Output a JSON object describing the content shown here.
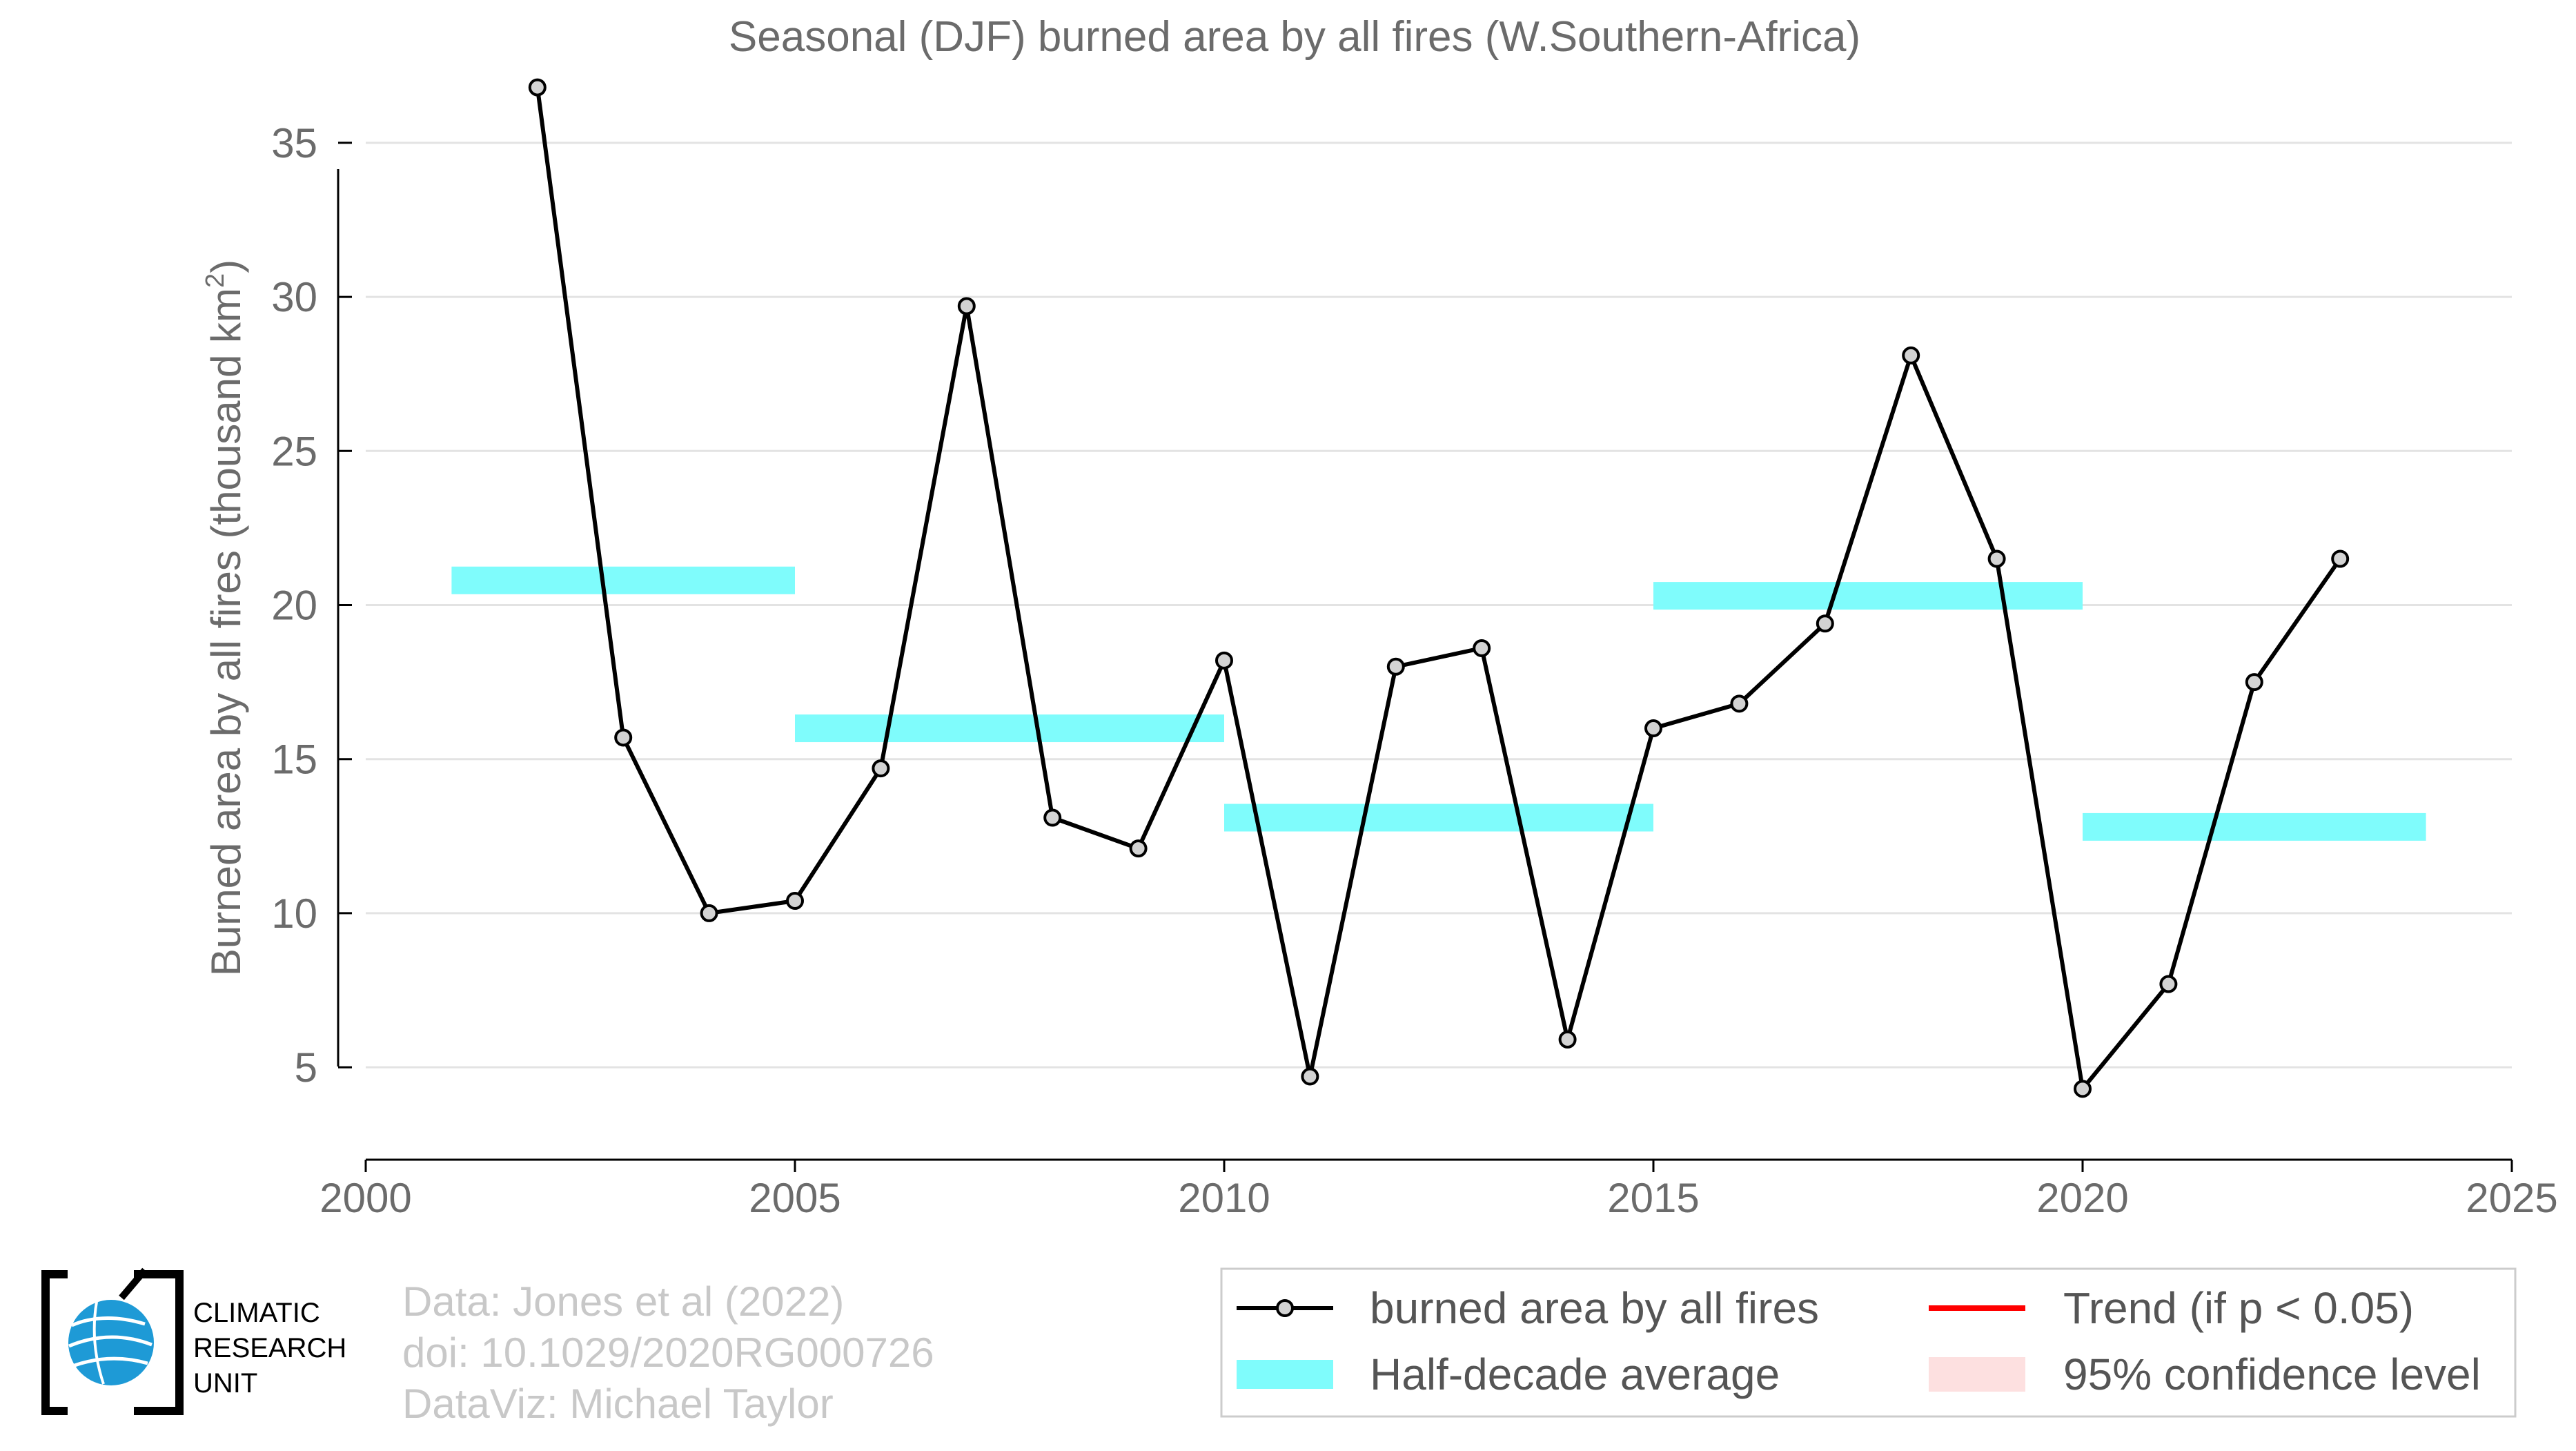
{
  "chart_data": {
    "type": "line",
    "title": "Seasonal (DJF) burned area by all fires (W.Southern-Africa)",
    "ylabel_main": "Burned area by all fires (thousand km",
    "ylabel_sup": "2",
    "ylabel_end": ")",
    "xlim": [
      2000,
      2025
    ],
    "ylim": [
      2,
      38
    ],
    "x_ticks": [
      "2000",
      "2005",
      "2010",
      "2015",
      "2020",
      "2025"
    ],
    "y_ticks": [
      "5",
      "10",
      "15",
      "20",
      "25",
      "30",
      "35"
    ],
    "grid": "horizontal",
    "series": [
      {
        "name": "burned area by all fires",
        "color": "#000000",
        "x": [
          2002,
          2003,
          2004,
          2005,
          2006,
          2007,
          2008,
          2009,
          2010,
          2011,
          2012,
          2013,
          2014,
          2015,
          2016,
          2017,
          2018,
          2019,
          2020,
          2021,
          2022,
          2023
        ],
        "y": [
          36.8,
          15.7,
          10.0,
          10.4,
          14.7,
          29.7,
          13.1,
          12.1,
          18.2,
          4.7,
          18.0,
          18.6,
          5.9,
          16.0,
          16.8,
          19.4,
          28.1,
          21.5,
          4.3,
          7.7,
          17.5,
          21.5
        ]
      }
    ],
    "half_decade_average": {
      "name": "Half-decade average",
      "color": "#7ffcfc",
      "segments": [
        {
          "x0": 2001,
          "x1": 2005,
          "y": 20.8
        },
        {
          "x0": 2005,
          "x1": 2010,
          "y": 16.0
        },
        {
          "x0": 2010,
          "x1": 2015,
          "y": 13.1
        },
        {
          "x0": 2015,
          "x1": 2020,
          "y": 20.3
        },
        {
          "x0": 2020,
          "x1": 2024,
          "y": 12.8
        }
      ]
    },
    "legend": {
      "placement": "bottom-right",
      "entries": [
        {
          "label": "burned area by all fires",
          "kind": "line-marker",
          "color": "#000000"
        },
        {
          "label": "Trend (if p < 0.05)",
          "kind": "line",
          "color": "#ff0000"
        },
        {
          "label": "Half-decade average",
          "kind": "band",
          "color": "#7ffcfc"
        },
        {
          "label": "95% confidence level",
          "kind": "patch",
          "color": "#fde0e0"
        }
      ]
    }
  },
  "credits": {
    "line1": "Data: Jones et al (2022)",
    "line2": "doi: 10.1029/2020RG000726",
    "line3": "DataViz: Michael Taylor"
  },
  "logo": {
    "line1": "CLIMATIC",
    "line2": "RESEARCH",
    "line3": "UNIT",
    "icon": "globe-icon"
  }
}
